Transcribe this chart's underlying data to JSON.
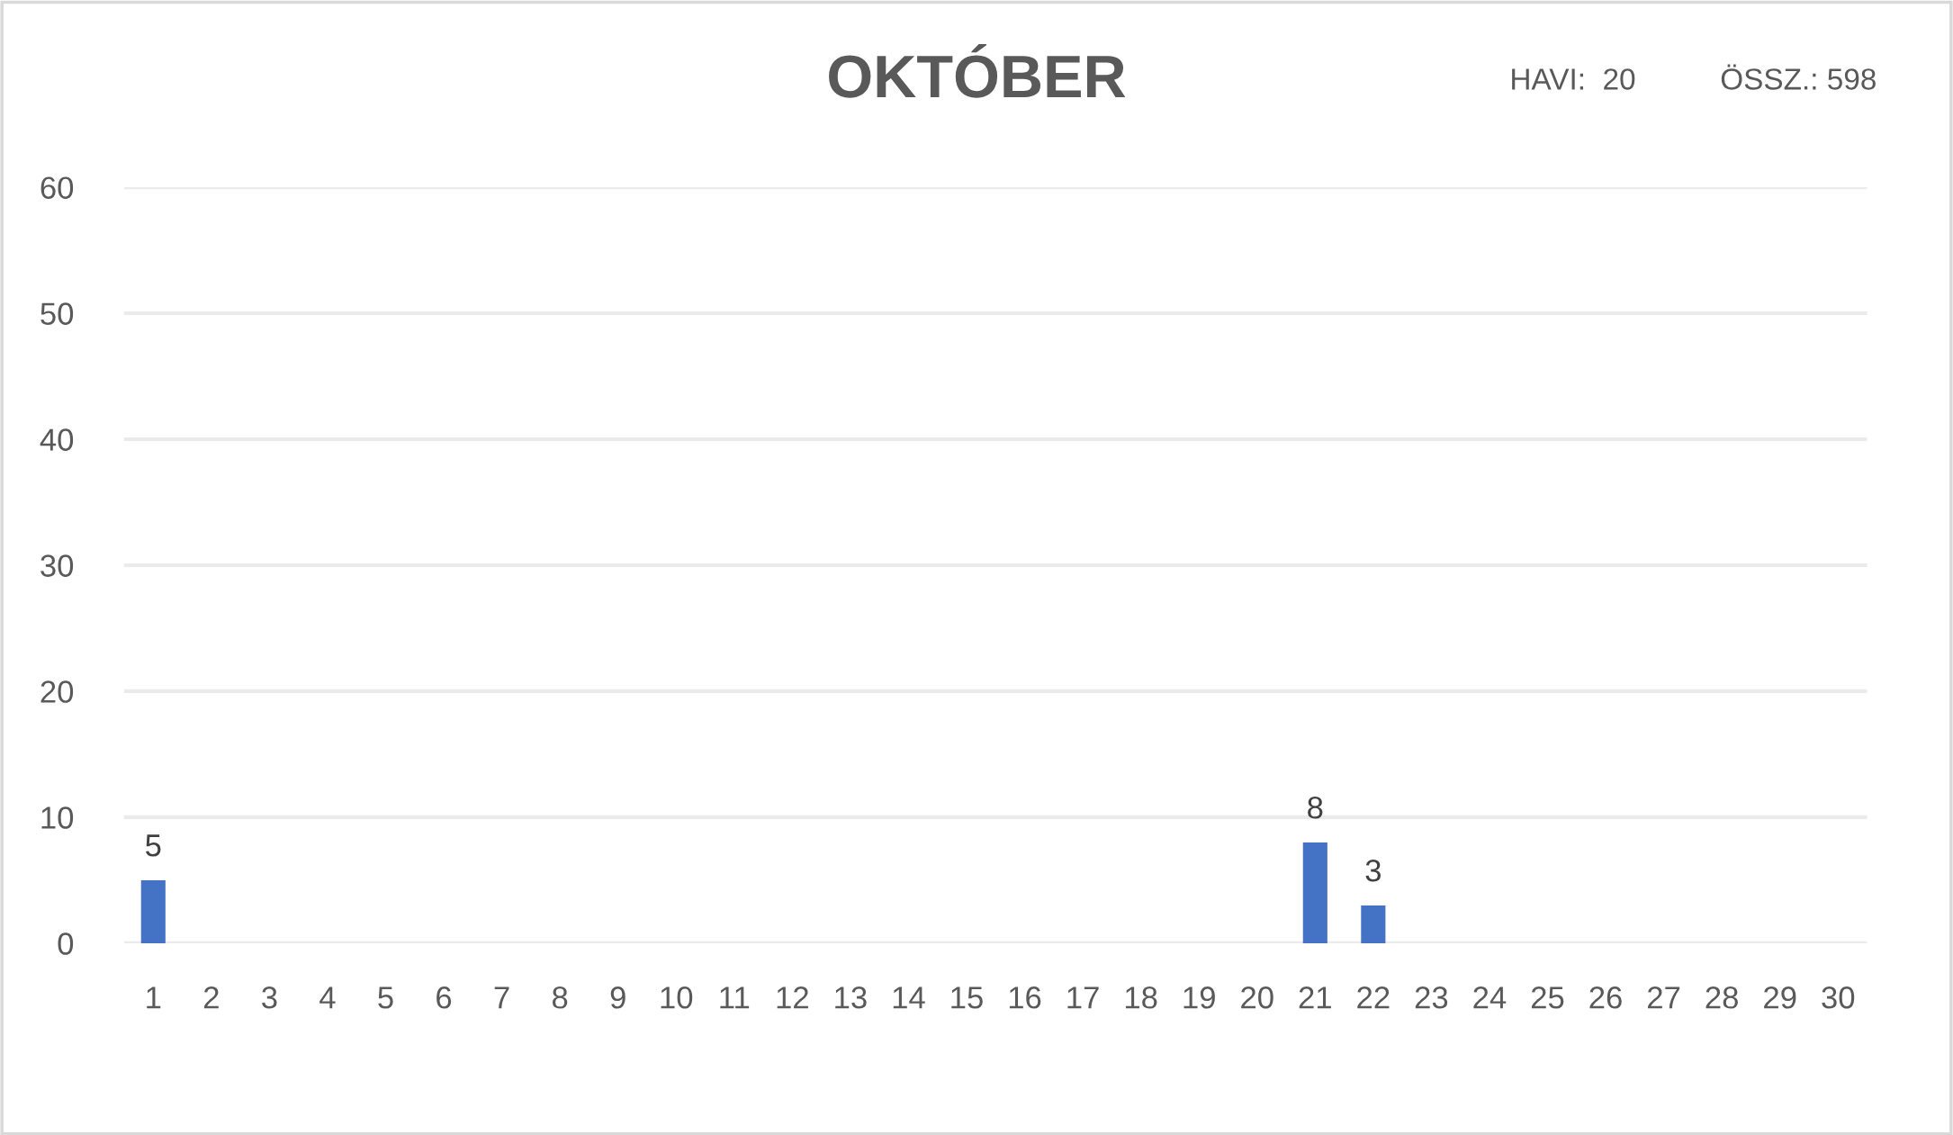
{
  "chart_data": {
    "type": "bar",
    "title": "OKTÓBER",
    "annotations": [
      "HAVI:  20",
      "ÖSSZ.: 598"
    ],
    "categories": [
      "1",
      "2",
      "3",
      "4",
      "5",
      "6",
      "7",
      "8",
      "9",
      "10",
      "11",
      "12",
      "13",
      "14",
      "15",
      "16",
      "17",
      "18",
      "19",
      "20",
      "21",
      "22",
      "23",
      "24",
      "25",
      "26",
      "27",
      "28",
      "29",
      "30"
    ],
    "values": [
      5,
      null,
      null,
      null,
      null,
      null,
      null,
      null,
      null,
      null,
      null,
      null,
      null,
      null,
      null,
      null,
      null,
      null,
      null,
      null,
      8,
      3,
      null,
      null,
      null,
      null,
      null,
      null,
      null,
      null
    ],
    "color": "#4472c4",
    "ylim": [
      0,
      60
    ],
    "yticks": [
      0,
      10,
      20,
      30,
      40,
      50,
      60
    ],
    "grid": "y",
    "data_labels": true
  }
}
